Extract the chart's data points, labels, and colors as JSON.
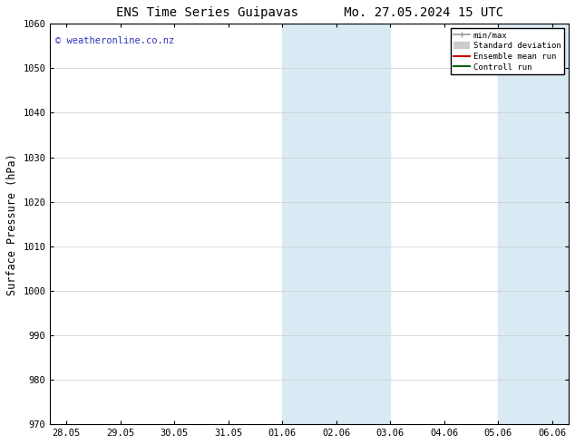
{
  "title_left": "ENS Time Series Guipavas",
  "title_right": "Mo. 27.05.2024 15 UTC",
  "ylabel": "Surface Pressure (hPa)",
  "ylim": [
    970,
    1060
  ],
  "yticks": [
    970,
    980,
    990,
    1000,
    1010,
    1020,
    1030,
    1040,
    1050,
    1060
  ],
  "xtick_labels": [
    "28.05",
    "29.05",
    "30.05",
    "31.05",
    "01.06",
    "02.06",
    "03.06",
    "04.06",
    "05.06",
    "06.06"
  ],
  "xtick_positions_days": [
    0,
    1,
    2,
    3,
    4,
    5,
    6,
    7,
    8,
    9
  ],
  "xlim": [
    -0.3,
    9.3
  ],
  "shaded_regions": [
    {
      "start_day": 4.0,
      "end_day": 5.0
    },
    {
      "start_day": 5.0,
      "end_day": 6.0
    },
    {
      "start_day": 8.0,
      "end_day": 9.0
    }
  ],
  "shaded_color": "#daeaf5",
  "watermark_text": "© weatheronline.co.nz",
  "watermark_color": "#3333bb",
  "legend_entries": [
    {
      "label": "min/max",
      "color": "#999999",
      "lw": 1.2
    },
    {
      "label": "Standard deviation",
      "color": "#cccccc",
      "lw": 6
    },
    {
      "label": "Ensemble mean run",
      "color": "#cc0000",
      "lw": 1.5
    },
    {
      "label": "Controll run",
      "color": "#006600",
      "lw": 1.5
    }
  ],
  "bg_color": "#ffffff",
  "grid_color": "#cccccc",
  "title_fontsize": 10,
  "tick_fontsize": 7.5,
  "ylabel_fontsize": 8.5,
  "watermark_fontsize": 7.5
}
